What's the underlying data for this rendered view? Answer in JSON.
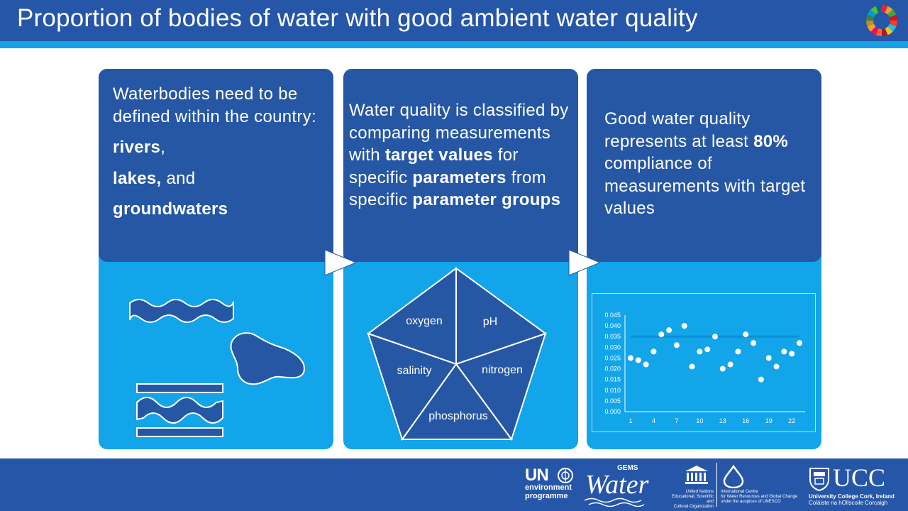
{
  "title": "Proportion of bodies of water with good ambient water quality",
  "panels": {
    "p1": {
      "line1": "Waterbodies need to be defined within the country:",
      "rivers": "rivers",
      "rivers_suffix": ",",
      "lakes": "lakes,",
      "lakes_suffix": " and",
      "groundwaters": "groundwaters"
    },
    "p2": {
      "t1": "Water quality is classified by comparing measurements  with ",
      "b1": "target values",
      "t2": " for specific ",
      "b2": "parameters",
      "t3": " from specific ",
      "b3": "parameter groups"
    },
    "p3": {
      "t1": "Good water quality represents at least ",
      "b1": "80%",
      "t2": " compliance of measurements  with target values"
    },
    "pentagon": {
      "oxygen": "oxygen",
      "ph": "pH",
      "salinity": "salinity",
      "nitrogen": "nitrogen",
      "phosphorus": "phosphorus"
    }
  },
  "chart_data": {
    "type": "scatter",
    "x": [
      1,
      2,
      3,
      4,
      5,
      6,
      7,
      8,
      9,
      10,
      11,
      12,
      13,
      14,
      15,
      16,
      17,
      18,
      19,
      20,
      21,
      22,
      23
    ],
    "values": [
      0.025,
      0.024,
      0.022,
      0.028,
      0.036,
      0.038,
      0.031,
      0.04,
      0.021,
      0.028,
      0.029,
      0.035,
      0.02,
      0.022,
      0.028,
      0.036,
      0.032,
      0.015,
      0.025,
      0.021,
      0.028,
      0.027,
      0.032
    ],
    "target": 0.035,
    "ylim": [
      0,
      0.045
    ],
    "yticks": [
      "0.045",
      "0.040",
      "0.035",
      "0.030",
      "0.025",
      "0.020",
      "0.015",
      "0.010",
      "0.005",
      "0.000"
    ],
    "xticks": [
      "1",
      "4",
      "7",
      "10",
      "13",
      "16",
      "19",
      "22"
    ],
    "point_color": "#ffffff",
    "target_color": "#1aa0e6"
  },
  "footer": {
    "un": "UN",
    "environment": "environment",
    "programme": "programme",
    "water": "Water",
    "gems": "GEMS",
    "unesco1": "United Nations",
    "unesco2": "Educational, Scientific and",
    "unesco3": "Cultural Organization",
    "icwr1": "International Centre",
    "icwr2": "for Water Resources and Global Change",
    "icwr3": "under the auspices of UNESCO",
    "ucc": "UCC",
    "ucc_sub1": "University College Cork, Ireland",
    "ucc_sub2": "Coláiste na hOllscoile Corcaigh"
  },
  "colors": {
    "header": "#2656a8",
    "stripe": "#1aa0e6",
    "panel_dark": "#2657a5",
    "panel_light": "#12a5ea"
  }
}
